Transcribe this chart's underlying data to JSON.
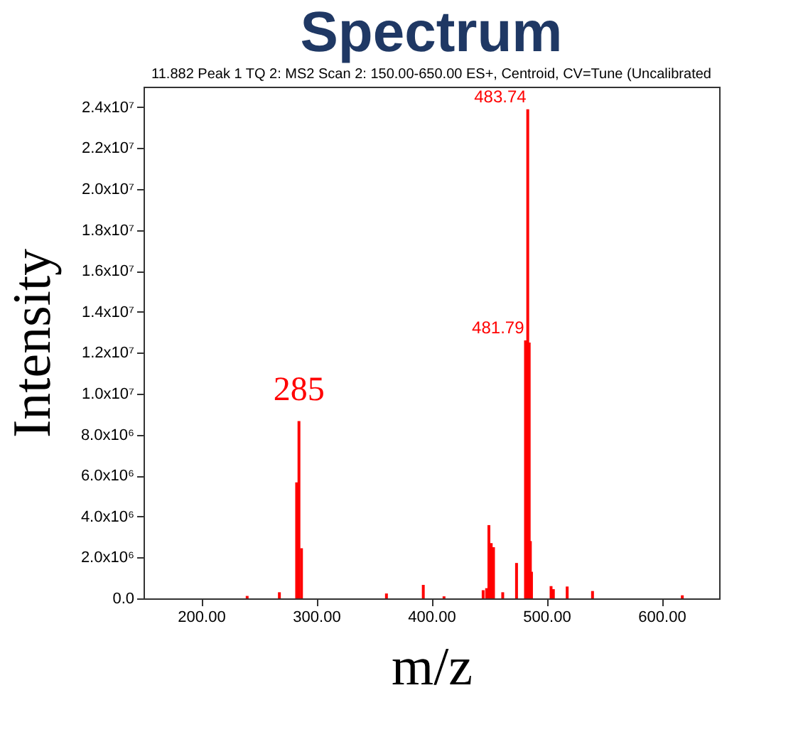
{
  "chart_data": {
    "type": "bar",
    "title": "Spectrum",
    "subtitle": "11.882 Peak 1 TQ 2: MS2 Scan 2: 150.00-650.00 ES+, Centroid, CV=Tune (Uncalibrated",
    "xlabel": "m/z",
    "ylabel": "Intensity",
    "x": [
      240,
      268,
      283,
      285,
      287.2,
      361,
      393,
      411,
      445,
      448,
      450,
      452,
      454,
      462,
      474,
      481.79,
      483.74,
      485,
      486,
      487,
      504,
      506,
      518,
      540,
      618
    ],
    "series": [
      {
        "color": "#ff0000",
        "values": [
          120000,
          300000,
          5670000,
          8660000,
          2450000,
          240000,
          660000,
          100000,
          400000,
          500000,
          3580000,
          2700000,
          2500000,
          300000,
          1730000,
          12600000,
          23900000,
          12500000,
          2800000,
          1300000,
          600000,
          450000,
          580000,
          360000,
          150000
        ]
      }
    ],
    "xlim": [
      150,
      650
    ],
    "xticks": [
      {
        "value": 200,
        "label": "200.00"
      },
      {
        "value": 300,
        "label": "300.00"
      },
      {
        "value": 400,
        "label": "400.00"
      },
      {
        "value": 500,
        "label": "500.00"
      },
      {
        "value": 600,
        "label": "600.00"
      }
    ],
    "ylim": [
      0,
      25000000
    ],
    "yticks": [
      {
        "value": 0,
        "label": "0.0"
      },
      {
        "value": 2000000,
        "label": "2.0x10⁶"
      },
      {
        "value": 4000000,
        "label": "4.0x10⁶"
      },
      {
        "value": 6000000,
        "label": "6.0x10⁶"
      },
      {
        "value": 8000000,
        "label": "8.0x10⁶"
      },
      {
        "value": 10000000,
        "label": "1.0x10⁷"
      },
      {
        "value": 12000000,
        "label": "1.2x10⁷"
      },
      {
        "value": 14000000,
        "label": "1.4x10⁷"
      },
      {
        "value": 16000000,
        "label": "1.6x10⁷"
      },
      {
        "value": 18000000,
        "label": "1.8x10⁷"
      },
      {
        "value": 20000000,
        "label": "2.0x10⁷"
      },
      {
        "value": 22000000,
        "label": "2.2x10⁷"
      },
      {
        "value": 24000000,
        "label": "2.4x10⁷"
      }
    ],
    "annotations": [
      {
        "text": "285",
        "x": 285,
        "y": 8660000
      },
      {
        "text": "481.79",
        "x": 481.79,
        "y": 12600000
      },
      {
        "text": "483.74",
        "x": 483.74,
        "y": 23900000
      }
    ],
    "grid": false,
    "legend": false
  }
}
